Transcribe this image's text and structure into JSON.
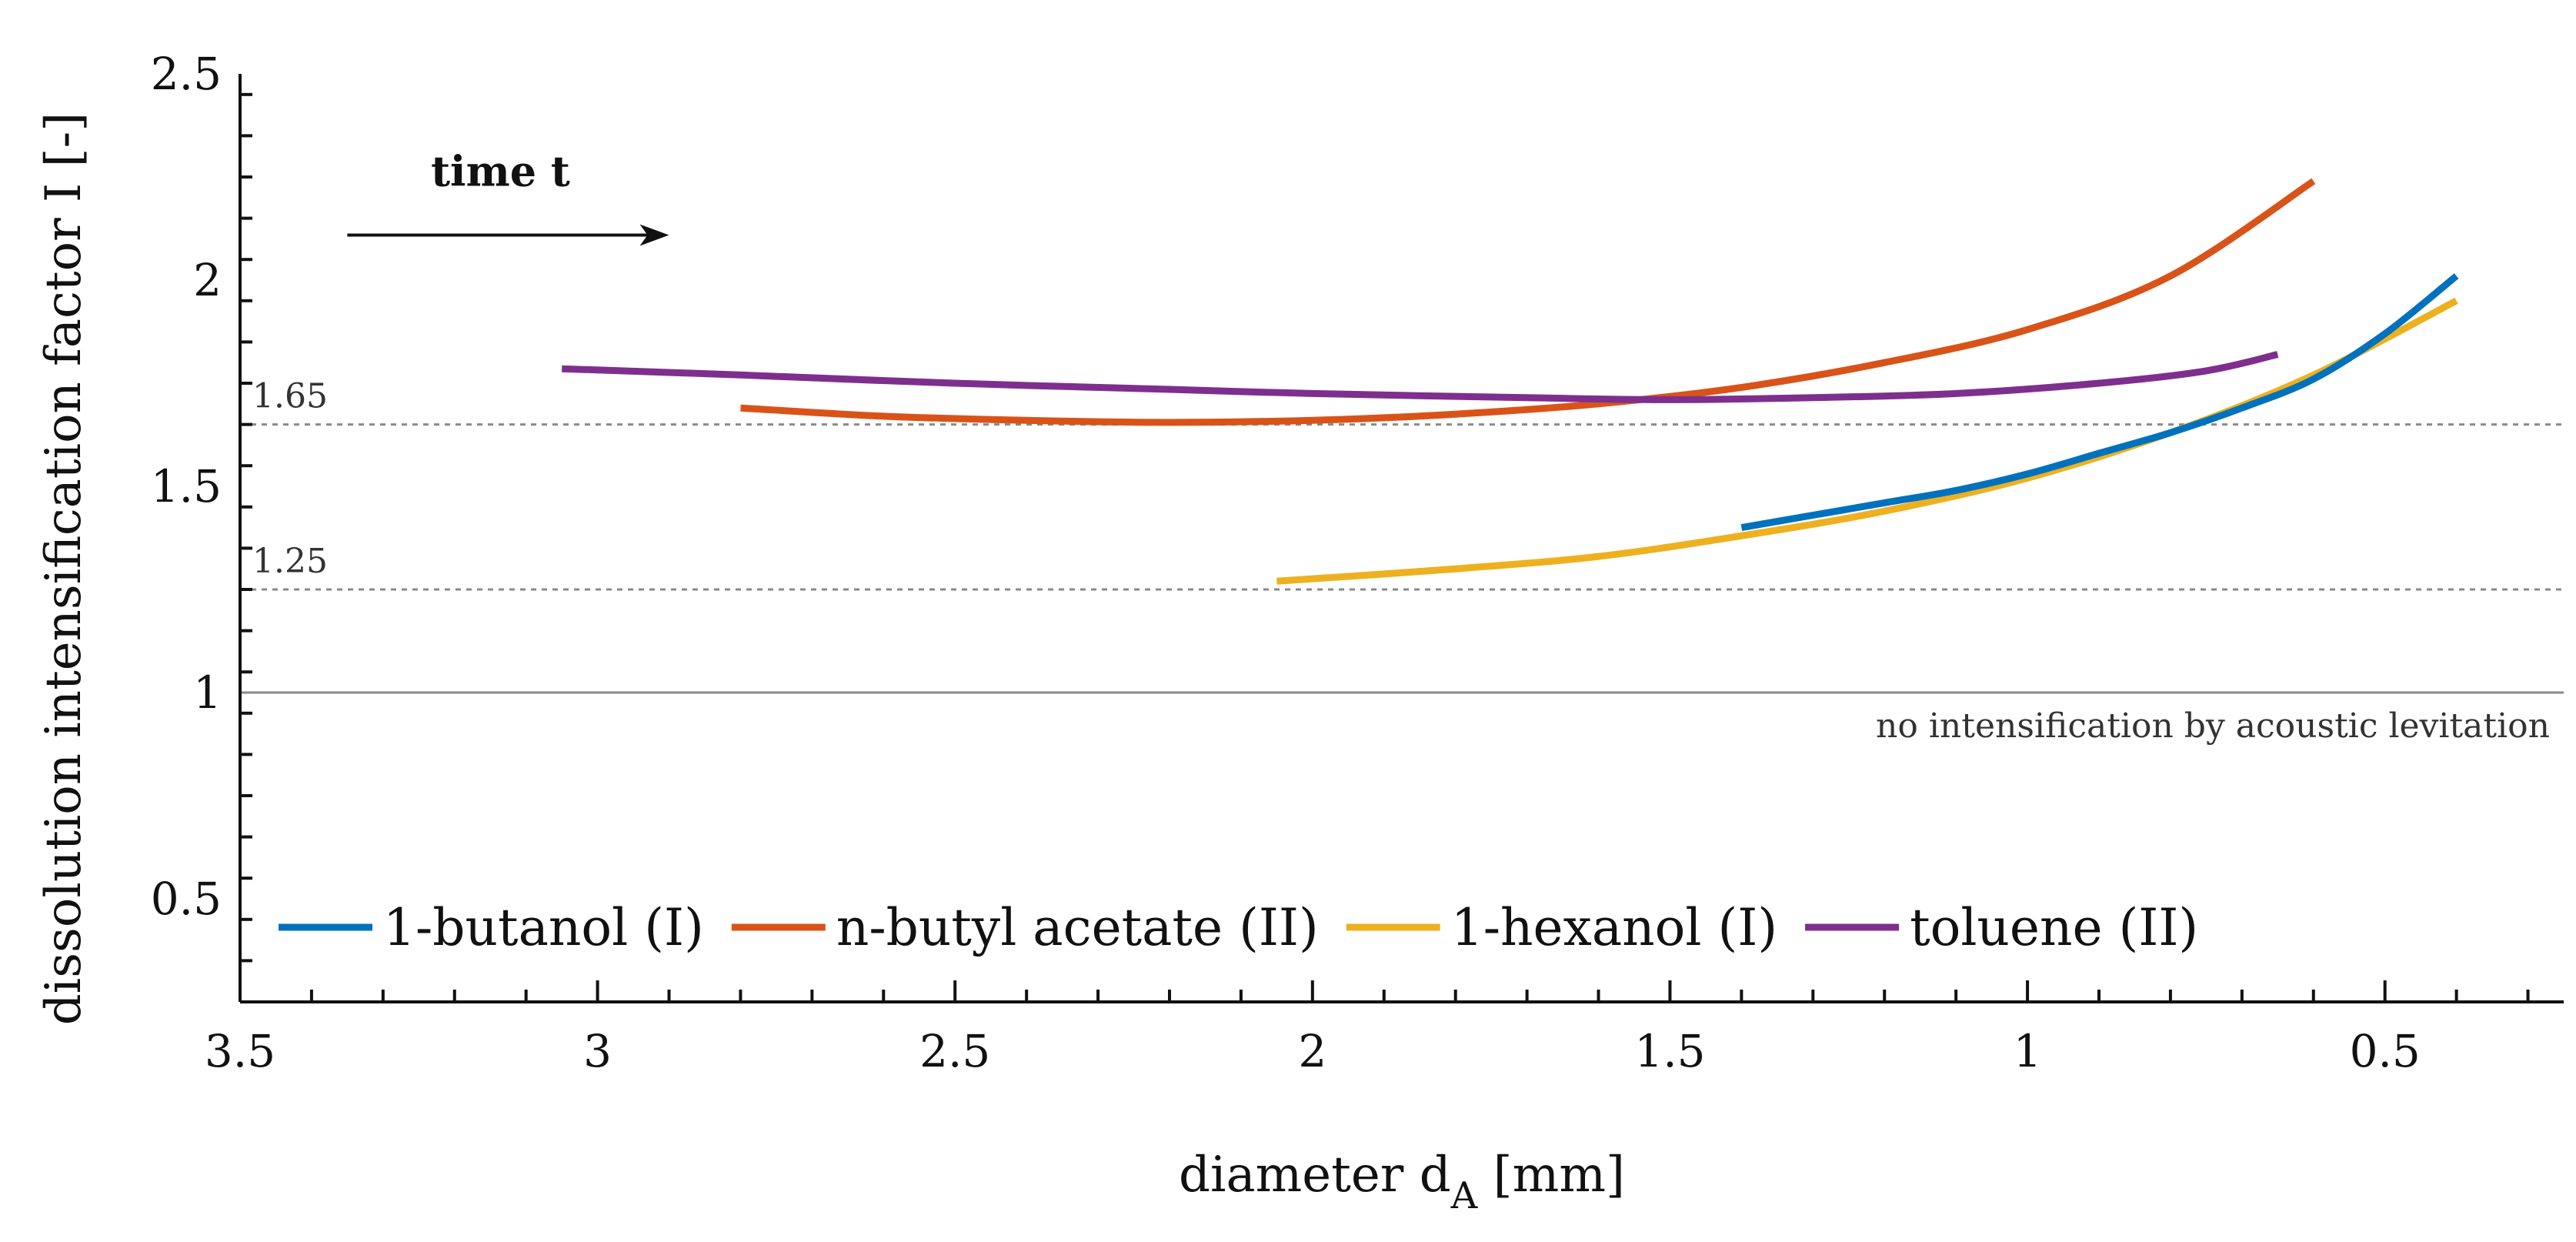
{
  "chart_data": {
    "type": "line",
    "title": "",
    "xlabel": "diameter d",
    "xlabel_subscript": "A",
    "xlabel_unit": "[mm]",
    "ylabel": "dissolution intensification factor I [-]",
    "xlim": [
      3.5,
      0.25
    ],
    "ylim": [
      0.25,
      2.5
    ],
    "x_reversed": true,
    "x_ticks": [
      3.5,
      3,
      2.5,
      2,
      1.5,
      1,
      0.5
    ],
    "x_tick_labels": [
      "3.5",
      "3",
      "2.5",
      "2",
      "1.5",
      "1",
      "0.5"
    ],
    "x_minor_step": 0.1,
    "y_ticks": [
      0.5,
      1,
      1.5,
      2,
      2.5
    ],
    "y_tick_labels": [
      "0.5",
      "1",
      "1.5",
      "2",
      "2.5"
    ],
    "y_minor_step": 0.1,
    "grid": false,
    "legend_position": "bottom-left",
    "reference_lines": [
      {
        "y": 1.65,
        "label": "1.65",
        "style": "dotted"
      },
      {
        "y": 1.25,
        "label": "1.25",
        "style": "dotted"
      },
      {
        "y": 1.0,
        "label": "no intensification by acoustic levitation",
        "style": "solid"
      }
    ],
    "annotation": {
      "text": "time t",
      "arrow_from_x": 3.35,
      "arrow_to_x": 2.9,
      "y": 2.18
    },
    "series": [
      {
        "name": "1-butanol (I)",
        "color": "#0072BD",
        "x": [
          1.4,
          1.3,
          1.2,
          1.1,
          1.0,
          0.9,
          0.8,
          0.7,
          0.6,
          0.5,
          0.4
        ],
        "y": [
          1.4,
          1.43,
          1.46,
          1.49,
          1.53,
          1.58,
          1.63,
          1.69,
          1.76,
          1.87,
          2.01
        ]
      },
      {
        "name": "n-butyl acetate (II)",
        "color": "#D95319",
        "x": [
          2.8,
          2.6,
          2.4,
          2.2,
          2.0,
          1.8,
          1.6,
          1.4,
          1.2,
          1.0,
          0.8,
          0.6
        ],
        "y": [
          1.69,
          1.67,
          1.66,
          1.655,
          1.66,
          1.675,
          1.7,
          1.74,
          1.8,
          1.88,
          2.01,
          2.24
        ]
      },
      {
        "name": "1-hexanol (I)",
        "color": "#EDB120",
        "x": [
          2.05,
          1.8,
          1.6,
          1.4,
          1.2,
          1.0,
          0.8,
          0.6,
          0.4
        ],
        "y": [
          1.27,
          1.3,
          1.33,
          1.38,
          1.44,
          1.52,
          1.63,
          1.77,
          1.95
        ]
      },
      {
        "name": "toluene (II)",
        "color": "#7E2F8E",
        "x": [
          3.05,
          2.8,
          2.5,
          2.2,
          2.0,
          1.7,
          1.5,
          1.3,
          1.1,
          0.9,
          0.75,
          0.65
        ],
        "y": [
          1.785,
          1.77,
          1.75,
          1.735,
          1.725,
          1.715,
          1.71,
          1.715,
          1.725,
          1.75,
          1.78,
          1.82
        ]
      }
    ]
  }
}
